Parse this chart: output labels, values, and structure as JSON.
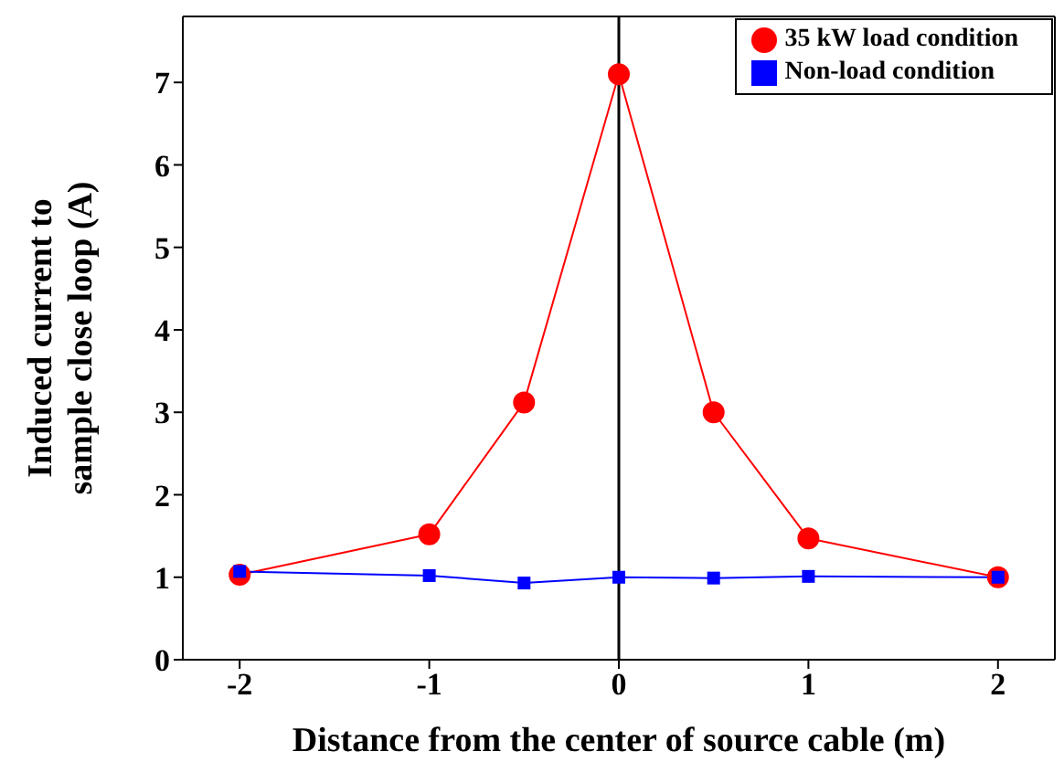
{
  "chart_data": {
    "type": "line",
    "xlabel": "Distance from the center of source cable (m)",
    "ylabel": "Induced current to sample close loop (A)",
    "x": [
      -2,
      -1,
      -0.5,
      0,
      0.5,
      1,
      2
    ],
    "series": [
      {
        "name": "35 kW load condition",
        "color": "#ff0000",
        "marker": "circle",
        "values": [
          1.03,
          1.52,
          3.12,
          7.1,
          3.0,
          1.47,
          1.0
        ]
      },
      {
        "name": "Non-load condition",
        "color": "#0000ff",
        "marker": "square",
        "values": [
          1.07,
          1.02,
          0.93,
          1.0,
          0.99,
          1.01,
          1.0
        ]
      }
    ],
    "xlim": [
      -2.3,
      2.3
    ],
    "xticks": [
      -2,
      -1,
      0,
      1,
      2
    ],
    "ylim": [
      0,
      7.8
    ],
    "yticks": [
      0,
      1,
      2,
      3,
      4,
      5,
      6,
      7
    ],
    "ref_lines": [
      {
        "axis": "x",
        "value": 0,
        "color": "#000000"
      }
    ],
    "grid": false,
    "legend": "top right"
  }
}
